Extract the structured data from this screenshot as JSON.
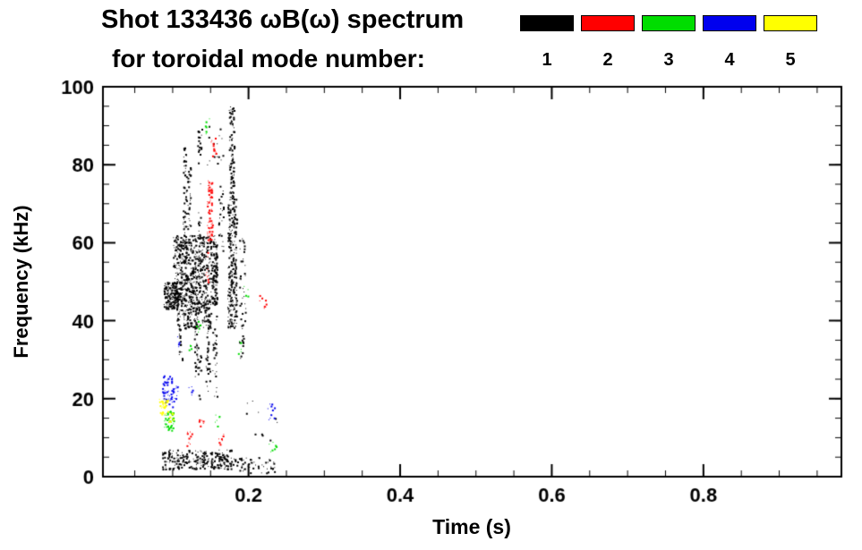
{
  "chart_data": {
    "type": "scatter",
    "title": "Shot 133436 ωB(ω) spectrum",
    "subtitle": "for toroidal mode number:",
    "xlabel": "Time (s)",
    "ylabel": "Frequency (kHz)",
    "xlim": [
      0.008,
      0.982
    ],
    "ylim": [
      0,
      100
    ],
    "xticks": [
      0.2,
      0.4,
      0.6,
      0.8
    ],
    "xtick_labels": [
      "0.2",
      "0.4",
      "0.6",
      "0.8"
    ],
    "xminor_step": 0.05,
    "yticks": [
      0,
      20,
      40,
      60,
      80,
      100
    ],
    "ytick_labels": [
      "0",
      "20",
      "40",
      "60",
      "80",
      "100"
    ],
    "yminor_step": 5,
    "grid": false,
    "legend": {
      "position": "top-right",
      "entries": [
        {
          "label": "1",
          "color": "#000000"
        },
        {
          "label": "2",
          "color": "#ff0000"
        },
        {
          "label": "3",
          "color": "#00dd00"
        },
        {
          "label": "4",
          "color": "#0000ee"
        },
        {
          "label": "5",
          "color": "#ffff00"
        }
      ]
    },
    "series": [
      {
        "name": "n=1",
        "color": "#000000",
        "clusters": [
          {
            "t": [
              0.088,
              0.106
            ],
            "f": [
              43,
              50
            ],
            "n": 160
          },
          {
            "t": [
              0.1,
              0.158
            ],
            "f": [
              44,
              62
            ],
            "n": 650
          },
          {
            "t": [
              0.105,
              0.15
            ],
            "f": [
              38,
              46
            ],
            "n": 160
          },
          {
            "t": [
              0.113,
              0.118
            ],
            "f": [
              55,
              85
            ],
            "n": 60
          },
          {
            "t": [
              0.119,
              0.123
            ],
            "f": [
              60,
              80
            ],
            "n": 35
          },
          {
            "t": [
              0.128,
              0.133
            ],
            "f": [
              25,
              45
            ],
            "n": 45
          },
          {
            "t": [
              0.133,
              0.137
            ],
            "f": [
              20,
              88
            ],
            "n": 40
          },
          {
            "t": [
              0.143,
              0.149
            ],
            "f": [
              22,
              45
            ],
            "n": 50
          },
          {
            "t": [
              0.152,
              0.158
            ],
            "f": [
              20,
              55
            ],
            "n": 55
          },
          {
            "t": [
              0.16,
              0.167
            ],
            "f": [
              58,
              76
            ],
            "n": 25
          },
          {
            "t": [
              0.172,
              0.184
            ],
            "f": [
              38,
              72
            ],
            "n": 260
          },
          {
            "t": [
              0.174,
              0.181
            ],
            "f": [
              72,
              95
            ],
            "n": 90
          },
          {
            "t": [
              0.187,
              0.196
            ],
            "f": [
              30,
              62
            ],
            "n": 45
          },
          {
            "t": [
              0.13,
              0.17
            ],
            "f": [
              80,
              90
            ],
            "n": 22
          },
          {
            "t": [
              0.085,
              0.178
            ],
            "f": [
              2,
              7
            ],
            "n": 260
          },
          {
            "t": [
              0.178,
              0.235
            ],
            "f": [
              1,
              5
            ],
            "n": 55
          },
          {
            "t": [
              0.195,
              0.24
            ],
            "f": [
              8,
              20
            ],
            "n": 10
          },
          {
            "t": [
              0.108,
              0.112
            ],
            "f": [
              30,
              40
            ],
            "n": 14
          }
        ]
      },
      {
        "name": "n=2",
        "color": "#ff0000",
        "clusters": [
          {
            "t": [
              0.145,
              0.152
            ],
            "f": [
              60,
              76
            ],
            "n": 70
          },
          {
            "t": [
              0.15,
              0.157
            ],
            "f": [
              82,
              87
            ],
            "n": 12
          },
          {
            "t": [
              0.118,
              0.126
            ],
            "f": [
              8,
              12
            ],
            "n": 10
          },
          {
            "t": [
              0.16,
              0.168
            ],
            "f": [
              8,
              11
            ],
            "n": 8
          },
          {
            "t": [
              0.214,
              0.224
            ],
            "f": [
              43,
              47
            ],
            "n": 8
          },
          {
            "t": [
              0.134,
              0.14
            ],
            "f": [
              12,
              15
            ],
            "n": 6
          },
          {
            "t": [
              0.143,
              0.147
            ],
            "f": [
              50,
              58
            ],
            "n": 10
          }
        ]
      },
      {
        "name": "n=3",
        "color": "#00dd00",
        "clusters": [
          {
            "t": [
              0.088,
              0.101
            ],
            "f": [
              12,
              17
            ],
            "n": 45
          },
          {
            "t": [
              0.142,
              0.148
            ],
            "f": [
              88,
              93
            ],
            "n": 9
          },
          {
            "t": [
              0.13,
              0.137
            ],
            "f": [
              36,
              40
            ],
            "n": 6
          },
          {
            "t": [
              0.185,
              0.192
            ],
            "f": [
              31,
              35
            ],
            "n": 6
          },
          {
            "t": [
              0.224,
              0.236
            ],
            "f": [
              6,
              9
            ],
            "n": 8
          },
          {
            "t": [
              0.155,
              0.163
            ],
            "f": [
              13,
              16
            ],
            "n": 6
          },
          {
            "t": [
              0.19,
              0.2
            ],
            "f": [
              45,
              49
            ],
            "n": 4
          },
          {
            "t": [
              0.118,
              0.124
            ],
            "f": [
              30,
              34
            ],
            "n": 4
          }
        ]
      },
      {
        "name": "n=4",
        "color": "#0000ee",
        "clusters": [
          {
            "t": [
              0.086,
              0.101
            ],
            "f": [
              18,
              26
            ],
            "n": 55
          },
          {
            "t": [
              0.101,
              0.107
            ],
            "f": [
              20,
              24
            ],
            "n": 10
          },
          {
            "t": [
              0.225,
              0.234
            ],
            "f": [
              14,
              19
            ],
            "n": 10
          },
          {
            "t": [
              0.12,
              0.126
            ],
            "f": [
              21,
              24
            ],
            "n": 5
          },
          {
            "t": [
              0.104,
              0.108
            ],
            "f": [
              33,
              36
            ],
            "n": 4
          }
        ]
      },
      {
        "name": "n=5",
        "color": "#ffff00",
        "clusters": [
          {
            "t": [
              0.082,
              0.093
            ],
            "f": [
              16,
              20
            ],
            "n": 32
          },
          {
            "t": [
              0.094,
              0.1
            ],
            "f": [
              14,
              17
            ],
            "n": 8
          }
        ]
      }
    ]
  }
}
